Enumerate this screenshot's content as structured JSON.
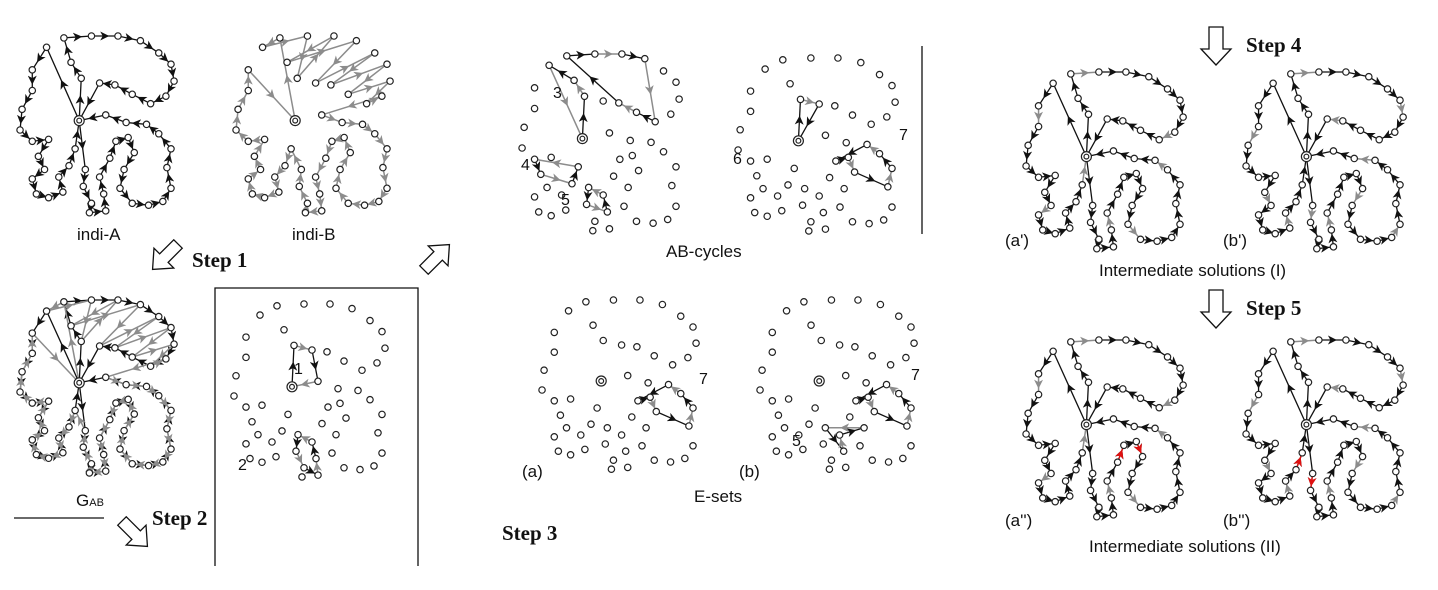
{
  "labels": {
    "indi_a": "indi-A",
    "indi_b": "indi-B",
    "gab_main": "G",
    "gab_sub": "AB",
    "ab_cycles": "AB-cycles",
    "e_sets": "E-sets",
    "set_a": "(a)",
    "set_b": "(b)",
    "inter1": "Intermediate solutions (I)",
    "inter2": "Intermediate solutions (II)",
    "a_prime": "(a')",
    "b_prime": "(b')",
    "a_dprime": "(a'')",
    "b_dprime": "(b'')"
  },
  "steps": {
    "s1": "Step 1",
    "s2": "Step 2",
    "s3": "Step 3",
    "s4": "Step 4",
    "s5": "Step 5"
  },
  "cycle_numbers": [
    "1",
    "2",
    "3",
    "4",
    "5",
    "6",
    "7",
    "7",
    "7",
    "5"
  ],
  "colors": {
    "parent_a_edge": "#111111",
    "parent_b_edge": "#8c8c8c",
    "new_edge": "#e01010"
  }
}
